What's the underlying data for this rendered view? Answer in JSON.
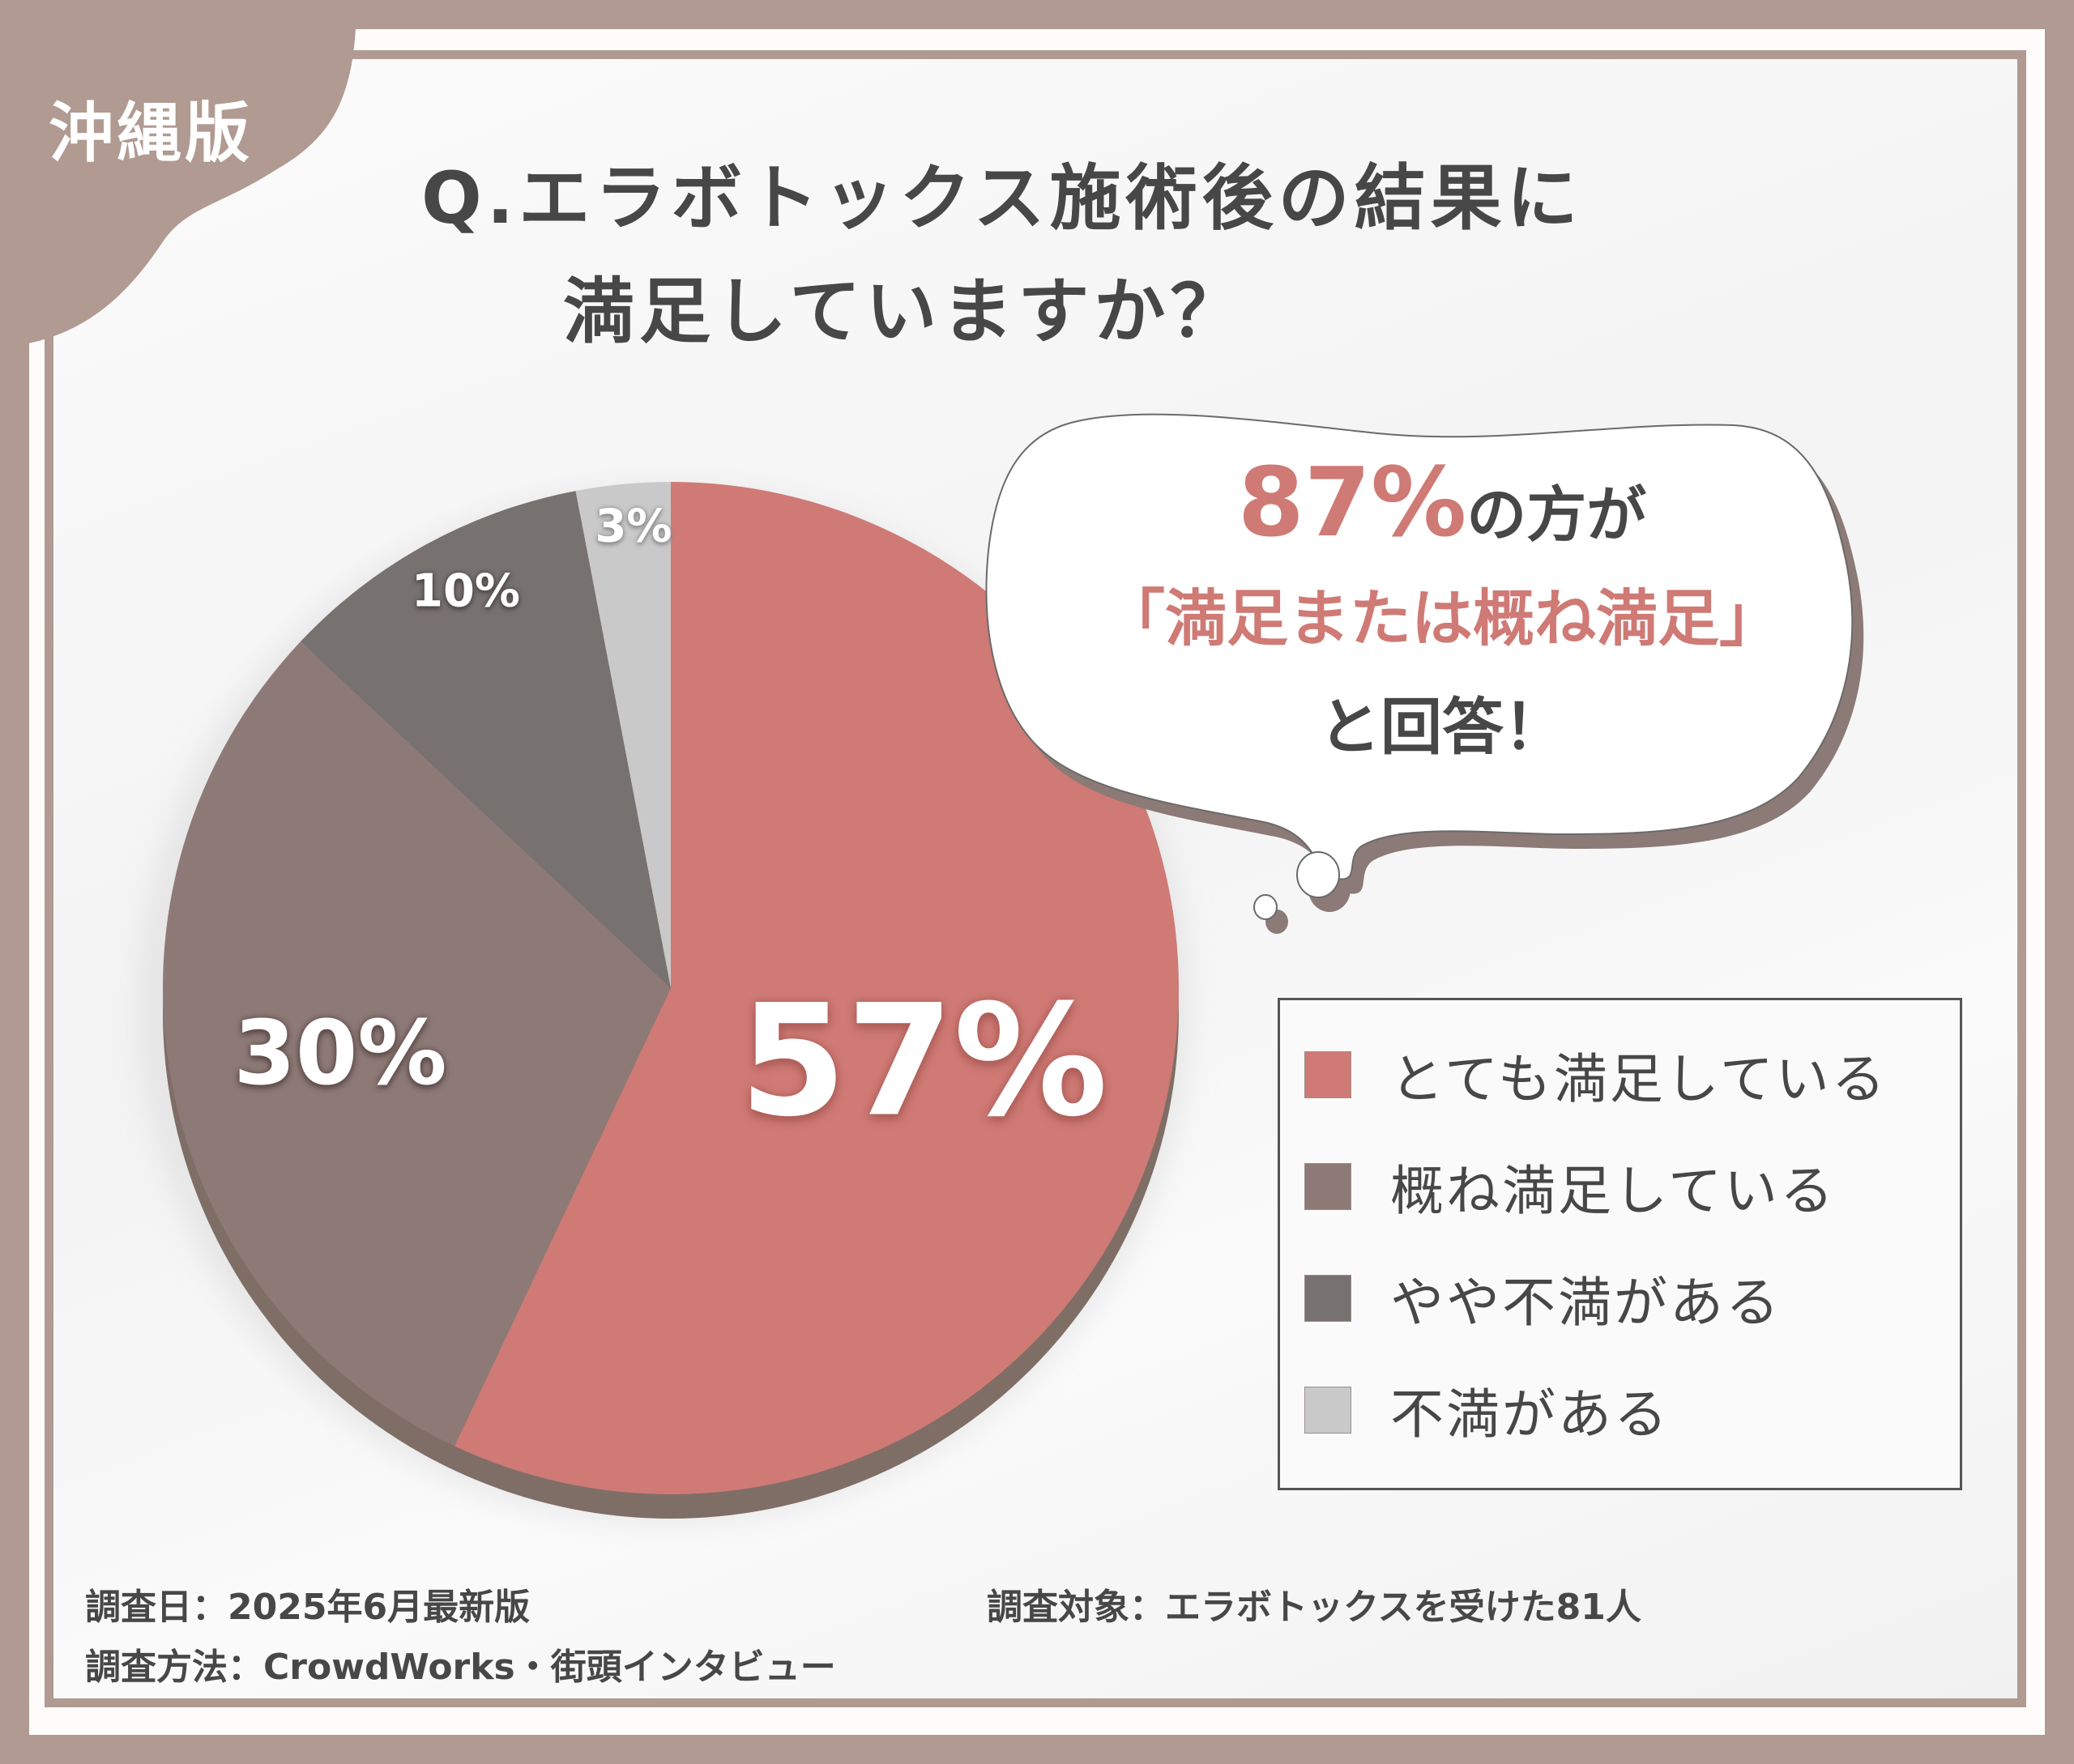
{
  "badge": {
    "region": "沖縄版"
  },
  "title": {
    "line1": "Q.エラボトックス施術後の結果に",
    "line2": "満足していますか？"
  },
  "callout": {
    "highlight": "87%",
    "line1_rest": "の方が",
    "line2": "「満足または概ね満足」",
    "line3": "と回答！"
  },
  "colors": {
    "frame": "#b09a91",
    "very_satisfied": "#cf7a75",
    "mostly_satisfied": "#8d7a77",
    "somewhat_dissatisfied": "#777170",
    "dissatisfied": "#c9c9c9",
    "pie_rim": "#7f6e66",
    "text": "#474747"
  },
  "pie_labels": {
    "very_satisfied": "57%",
    "mostly_satisfied": "30%",
    "somewhat_dissatisfied": "10%",
    "dissatisfied": "3%"
  },
  "legend": {
    "items": [
      {
        "label": "とても満足している",
        "color": "#cf7a75"
      },
      {
        "label": "概ね満足している",
        "color": "#8d7a77"
      },
      {
        "label": "やや不満がある",
        "color": "#777170"
      },
      {
        "label": "不満がある",
        "color": "#c9c9c9"
      }
    ]
  },
  "footer": {
    "survey_date": "調査日：2025年6月最新版",
    "survey_method": "調査方法：CrowdWorks・街頭インタビュー",
    "survey_target": "調査対象：エラボトックスを受けた81人"
  },
  "chart_data": {
    "type": "pie",
    "title": "Q.エラボトックス施術後の結果に満足していますか？",
    "subtitle": "沖縄版",
    "categories": [
      "とても満足している",
      "概ね満足している",
      "やや不満がある",
      "不満がある"
    ],
    "values": [
      57,
      30,
      10,
      3
    ],
    "unit": "%",
    "colors": [
      "#cf7a75",
      "#8d7a77",
      "#777170",
      "#c9c9c9"
    ],
    "start_angle": "12 o'clock",
    "direction": "clockwise",
    "legend_position": "right",
    "annotations": [
      "87%の方が「満足または概ね満足」と回答！"
    ],
    "sample_size": 81
  }
}
